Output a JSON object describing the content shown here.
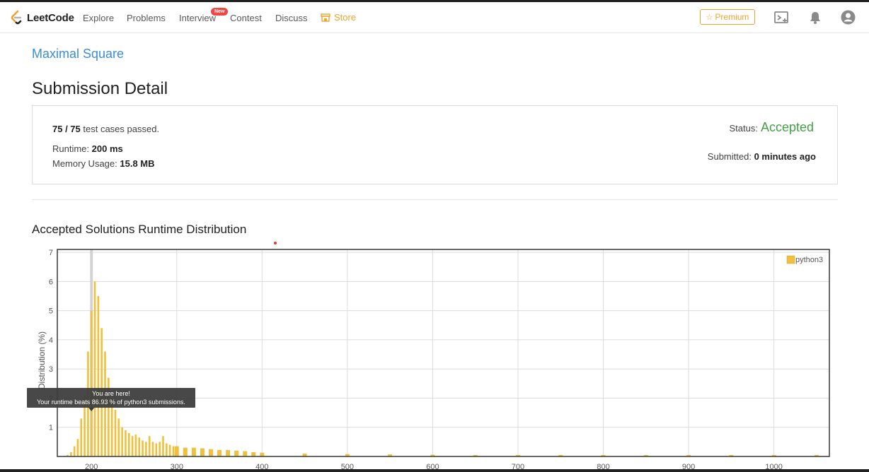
{
  "nav": {
    "brand": "LeetCode",
    "links": [
      "Explore",
      "Problems",
      "Interview",
      "Contest",
      "Discuss"
    ],
    "new_badge": "New",
    "store": "Store",
    "premium": "Premium"
  },
  "problem_title": "Maximal Square",
  "page_title": "Submission Detail",
  "detail": {
    "passed_count": "75 / 75",
    "passed_text": "test cases passed.",
    "runtime_label": "Runtime:",
    "runtime_value": "200 ms",
    "memory_label": "Memory Usage:",
    "memory_value": "15.8 MB",
    "status_label": "Status:",
    "status_value": "Accepted",
    "submitted_label": "Submitted:",
    "submitted_value": "0 minutes ago"
  },
  "colors": {
    "accent": "#3b8dd6",
    "accepted": "#43a047",
    "store": "#f0a22c",
    "bar": "#f0c03c"
  },
  "chart_data": {
    "type": "bar",
    "title": "Accepted Solutions Runtime Distribution",
    "ylabel": "Distribution (%)",
    "xlabel": "",
    "xlim": [
      160,
      1065
    ],
    "ylim": [
      0,
      7.1
    ],
    "x_ticks": [
      200,
      300,
      400,
      500,
      600,
      700,
      800,
      900,
      1000
    ],
    "y_ticks": [
      1,
      2,
      3,
      4,
      5,
      6,
      7
    ],
    "grid": true,
    "legend": "top-right",
    "series": [
      {
        "name": "python3",
        "x": [
          172,
          176,
          180,
          184,
          188,
          192,
          196,
          200,
          204,
          208,
          212,
          216,
          220,
          224,
          228,
          232,
          236,
          240,
          244,
          248,
          252,
          256,
          260,
          264,
          268,
          272,
          276,
          280,
          284,
          288,
          292,
          296,
          300,
          310,
          320,
          330,
          340,
          350,
          360,
          370,
          380,
          390,
          400,
          450,
          500,
          550,
          600,
          650,
          700,
          750,
          800,
          850,
          900,
          950,
          1000,
          1050
        ],
        "values": [
          0.05,
          0.15,
          0.35,
          0.6,
          1.3,
          2.1,
          3.6,
          5.0,
          6.0,
          5.5,
          4.4,
          3.6,
          2.7,
          2.0,
          1.6,
          1.3,
          1.0,
          0.9,
          0.8,
          0.7,
          0.75,
          0.65,
          0.55,
          0.5,
          0.7,
          0.5,
          0.45,
          0.5,
          0.7,
          0.45,
          0.4,
          0.35,
          0.35,
          0.3,
          0.3,
          0.28,
          0.25,
          0.22,
          0.22,
          0.2,
          0.18,
          0.15,
          0.13,
          0.1,
          0.08,
          0.07,
          0.06,
          0.05,
          0.05,
          0.05,
          0.05,
          0.05,
          0.05,
          0.05,
          0.05,
          0.05
        ]
      }
    ],
    "tooltip": {
      "line1": "You are here!",
      "line2": "Your runtime beats 86.93 % of python3 submissions."
    },
    "marker_x": 200
  }
}
